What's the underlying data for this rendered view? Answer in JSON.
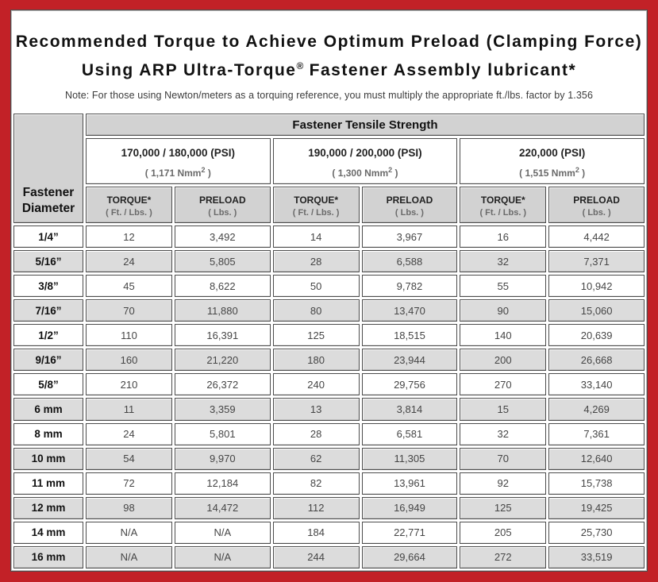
{
  "colors": {
    "frame_red": "#c22127",
    "cell_border": "#4d4d4d",
    "header_gray": "#d2d2d2",
    "row_alt_gray": "#dcdcdc",
    "unit_text": "#6a6a6a",
    "value_text": "#464646"
  },
  "title": {
    "line1": "Recommended Torque to Achieve Optimum Preload (Clamping Force)",
    "line2_pre": "Using ARP Ultra-Torque",
    "line2_sup": "®",
    "line2_post": " Fastener Assembly lubricant*"
  },
  "note": "Note: For those using Newton/meters as a torquing reference, you must multiply the appropriate ft./lbs. factor by 1.356",
  "table": {
    "tensile_header": "Fastener Tensile Strength",
    "diameter_header_line1": "Fastener",
    "diameter_header_line2": "Diameter",
    "groups": [
      {
        "psi": "170,000 / 180,000 (PSI)",
        "nmm_pre": "( 1,171 Nmm",
        "nmm_sup": "2",
        "nmm_post": " )"
      },
      {
        "psi": "190,000 / 200,000 (PSI)",
        "nmm_pre": "( 1,300 Nmm",
        "nmm_sup": "2",
        "nmm_post": " )"
      },
      {
        "psi": "220,000 (PSI)",
        "nmm_pre": "( 1,515 Nmm",
        "nmm_sup": "2",
        "nmm_post": " )"
      }
    ],
    "torque_label": "TORQUE*",
    "torque_unit": "( Ft. / Lbs. )",
    "preload_label": "PRELOAD",
    "preload_unit": "( Lbs. )",
    "rows": [
      {
        "d": "1/4”",
        "v": [
          "12",
          "3,492",
          "14",
          "3,967",
          "16",
          "4,442"
        ]
      },
      {
        "d": "5/16”",
        "v": [
          "24",
          "5,805",
          "28",
          "6,588",
          "32",
          "7,371"
        ]
      },
      {
        "d": "3/8”",
        "v": [
          "45",
          "8,622",
          "50",
          "9,782",
          "55",
          "10,942"
        ]
      },
      {
        "d": "7/16”",
        "v": [
          "70",
          "11,880",
          "80",
          "13,470",
          "90",
          "15,060"
        ]
      },
      {
        "d": "1/2”",
        "v": [
          "110",
          "16,391",
          "125",
          "18,515",
          "140",
          "20,639"
        ]
      },
      {
        "d": "9/16”",
        "v": [
          "160",
          "21,220",
          "180",
          "23,944",
          "200",
          "26,668"
        ]
      },
      {
        "d": "5/8”",
        "v": [
          "210",
          "26,372",
          "240",
          "29,756",
          "270",
          "33,140"
        ]
      },
      {
        "d": "6 mm",
        "v": [
          "11",
          "3,359",
          "13",
          "3,814",
          "15",
          "4,269"
        ]
      },
      {
        "d": "8 mm",
        "v": [
          "24",
          "5,801",
          "28",
          "6,581",
          "32",
          "7,361"
        ]
      },
      {
        "d": "10 mm",
        "v": [
          "54",
          "9,970",
          "62",
          "11,305",
          "70",
          "12,640"
        ]
      },
      {
        "d": "11 mm",
        "v": [
          "72",
          "12,184",
          "82",
          "13,961",
          "92",
          "15,738"
        ]
      },
      {
        "d": "12 mm",
        "v": [
          "98",
          "14,472",
          "112",
          "16,949",
          "125",
          "19,425"
        ]
      },
      {
        "d": "14 mm",
        "v": [
          "N/A",
          "N/A",
          "184",
          "22,771",
          "205",
          "25,730"
        ]
      },
      {
        "d": "16 mm",
        "v": [
          "N/A",
          "N/A",
          "244",
          "29,664",
          "272",
          "33,519"
        ]
      }
    ]
  }
}
